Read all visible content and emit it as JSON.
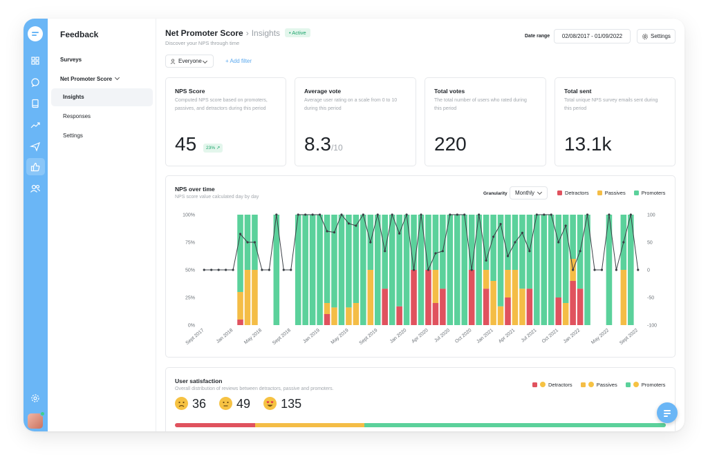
{
  "nav": {
    "title": "Feedback",
    "surveys": "Surveys",
    "nps": "Net Promoter Score",
    "sub_items": [
      "Insights",
      "Responses",
      "Settings"
    ]
  },
  "rail_icons": [
    "grid-icon",
    "chat-icon",
    "book-icon",
    "trend-icon",
    "send-icon",
    "thumbs-up-icon",
    "users-icon"
  ],
  "header": {
    "title": "Net Promoter Score",
    "crumb": "Insights",
    "badge": "• Active",
    "subtitle": "Discover your NPS through time",
    "date_label": "Date range",
    "date_value": "02/08/2017 - 01/09/2022",
    "settings": "Settings"
  },
  "filters": {
    "segment": "Everyone",
    "add": "+ Add filter"
  },
  "kpis": [
    {
      "title": "NPS Score",
      "desc": "Computed NPS score based on promoters, passives, and detractors during this period",
      "value": "45",
      "delta": "23% ↗"
    },
    {
      "title": "Average vote",
      "desc": "Average user rating on a scale from 0 to 10 during this period",
      "value": "8.3",
      "unit": "/10"
    },
    {
      "title": "Total votes",
      "desc": "The total number of users who rated during this period",
      "value": "220"
    },
    {
      "title": "Total sent",
      "desc": "Total unique NPS survey emails sent during this period",
      "value": "13.1k"
    }
  ],
  "nps_chart": {
    "title": "NPS over time",
    "subtitle": "NPS score value calculated day by day",
    "granularity_label": "Granularity",
    "granularity": "Monthly",
    "legend": [
      "Detractors",
      "Passives",
      "Promoters"
    ]
  },
  "colors": {
    "detractor": "#e0525e",
    "passive": "#f4bd46",
    "promoter": "#5bd19b",
    "accent": "#6ab6f6",
    "line": "#3a3f45"
  },
  "chart_data": {
    "type": "bar",
    "stacked": true,
    "secondary_series": "line",
    "x": [
      "Sept 2017",
      "Oct 2017",
      "Nov 2017",
      "Dec 2017",
      "Jan 2018",
      "Feb 2018",
      "Mar 2018",
      "Apr 2018",
      "May 2018",
      "Jun 2018",
      "Jul 2018",
      "Aug 2018",
      "Sept 2018",
      "Oct 2018",
      "Nov 2018",
      "Dec 2018",
      "Jan 2019",
      "Feb 2019",
      "Mar 2019",
      "Apr 2019",
      "May 2019",
      "Jun 2019",
      "Jul 2019",
      "Aug 2019",
      "Sept 2019",
      "Oct 2019",
      "Nov 2019",
      "Dec 2019",
      "Jan 2020",
      "Feb 2020",
      "Mar 2020",
      "Apr 2020",
      "May 2020",
      "Jun 2020",
      "Jul 2020",
      "Aug 2020",
      "Sept 2020",
      "Oct 2020",
      "Nov 2020",
      "Dec 2020",
      "Jan 2021",
      "Feb 2021",
      "Mar 2021",
      "Apr 2021",
      "May 2021",
      "Jun 2021",
      "Jul 2021",
      "Aug 2021",
      "Sept 2021",
      "Oct 2021",
      "Nov 2021",
      "Dec 2021",
      "Jan 2022",
      "Feb 2022",
      "Mar 2022",
      "Apr 2022",
      "May 2022",
      "Jun 2022",
      "Jul 2022",
      "Aug 2022",
      "Sept 2022"
    ],
    "x_tick_labels": [
      "Sept 2017",
      "Jan 2018",
      "May 2018",
      "Sept 2018",
      "Jan 2019",
      "May 2019",
      "Sept 2019",
      "Jan 2020",
      "Apr 2020",
      "Jul 2020",
      "Oct 2020",
      "Jan 2021",
      "Apr 2021",
      "Jul 2021",
      "Oct 2021",
      "Jan 2022",
      "May 2022",
      "Sept 2022"
    ],
    "x_tick_index": [
      0,
      4,
      8,
      12,
      16,
      20,
      24,
      28,
      31,
      34,
      37,
      40,
      43,
      46,
      49,
      52,
      56,
      60
    ],
    "series": [
      {
        "name": "Detractors",
        "axis": "left",
        "values": [
          0,
          0,
          0,
          0,
          0,
          5,
          0,
          0,
          0,
          0,
          0,
          0,
          0,
          0,
          0,
          0,
          0,
          10,
          0,
          0,
          0,
          0,
          0,
          0,
          0,
          33,
          0,
          17,
          0,
          50,
          0,
          50,
          20,
          33,
          0,
          0,
          0,
          50,
          0,
          33,
          0,
          0,
          25,
          0,
          0,
          33,
          0,
          0,
          0,
          25,
          0,
          40,
          33,
          0,
          0,
          0,
          0,
          0,
          0,
          0,
          0
        ]
      },
      {
        "name": "Passives",
        "axis": "left",
        "values": [
          0,
          0,
          0,
          0,
          0,
          25,
          50,
          50,
          0,
          0,
          0,
          0,
          0,
          0,
          0,
          0,
          0,
          10,
          16,
          0,
          16,
          20,
          0,
          50,
          0,
          0,
          0,
          0,
          0,
          0,
          0,
          0,
          30,
          0,
          0,
          0,
          0,
          0,
          0,
          17,
          40,
          17,
          25,
          50,
          33,
          0,
          0,
          0,
          0,
          0,
          20,
          20,
          0,
          0,
          0,
          0,
          0,
          0,
          50,
          0,
          0
        ]
      },
      {
        "name": "Promoters",
        "axis": "left",
        "values": [
          0,
          0,
          0,
          0,
          0,
          70,
          50,
          50,
          0,
          0,
          100,
          0,
          0,
          100,
          100,
          100,
          100,
          80,
          84,
          100,
          84,
          80,
          100,
          50,
          100,
          67,
          100,
          83,
          100,
          50,
          100,
          50,
          50,
          67,
          100,
          100,
          100,
          50,
          100,
          50,
          60,
          83,
          50,
          50,
          67,
          67,
          100,
          100,
          100,
          75,
          80,
          40,
          67,
          100,
          0,
          0,
          100,
          0,
          50,
          100,
          0
        ]
      },
      {
        "name": "NPS",
        "axis": "right",
        "values": [
          0,
          0,
          0,
          0,
          0,
          65,
          50,
          50,
          0,
          0,
          100,
          0,
          0,
          100,
          100,
          100,
          100,
          70,
          68,
          100,
          84,
          80,
          100,
          50,
          100,
          34,
          100,
          66,
          100,
          0,
          100,
          0,
          30,
          34,
          100,
          100,
          100,
          0,
          100,
          17,
          60,
          83,
          25,
          50,
          67,
          34,
          100,
          100,
          100,
          50,
          80,
          0,
          34,
          100,
          0,
          0,
          100,
          0,
          50,
          100,
          0
        ]
      }
    ],
    "y_left_ticks": [
      "0%",
      "25%",
      "50%",
      "75%",
      "100%"
    ],
    "y_right_ticks": [
      "-100",
      "-50",
      "0",
      "50",
      "100"
    ],
    "ylim_left": [
      0,
      100
    ],
    "ylim_right": [
      -100,
      100
    ],
    "legend_position": "top-right"
  },
  "satisfaction": {
    "title": "User satisfaction",
    "subtitle": "Overall distribution of reviews between detractors, passive and promoters.",
    "legend": [
      "Detractors",
      "Passives",
      "Promoters"
    ],
    "counts": [
      {
        "face": "sad-face-icon",
        "value": "36"
      },
      {
        "face": "neutral-face-icon",
        "value": "49"
      },
      {
        "face": "heart-eyes-face-icon",
        "value": "135"
      }
    ],
    "distribution": [
      36,
      49,
      135
    ]
  }
}
